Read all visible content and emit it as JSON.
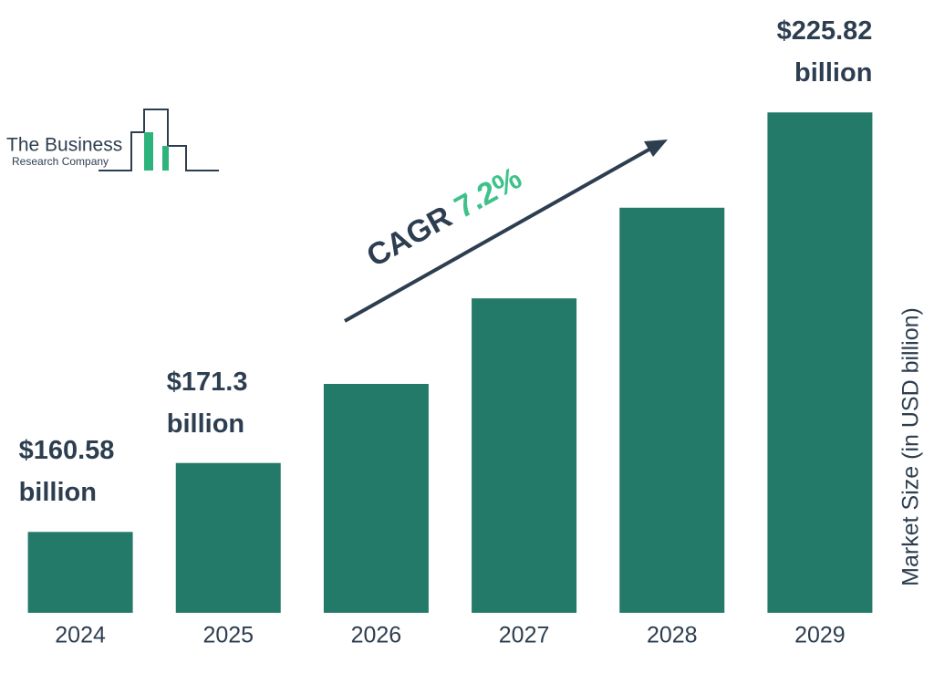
{
  "chart_data": {
    "type": "bar",
    "logo": {
      "line1": "The Business",
      "line2": "Research Company"
    },
    "annotation": {
      "label": "CAGR",
      "value": "7.2%"
    },
    "y_axis_label": "Market Size (in USD billion)",
    "categories": [
      "2024",
      "2025",
      "2026",
      "2027",
      "2028",
      "2029"
    ],
    "values": [
      160.58,
      171.3,
      183.6,
      196.9,
      211.0,
      225.82
    ],
    "value_labels": [
      "$160.58 billion",
      "$171.3 billion",
      null,
      null,
      null,
      "$225.82 billion"
    ],
    "color": "#237a68",
    "ylim": [
      148,
      226
    ]
  }
}
